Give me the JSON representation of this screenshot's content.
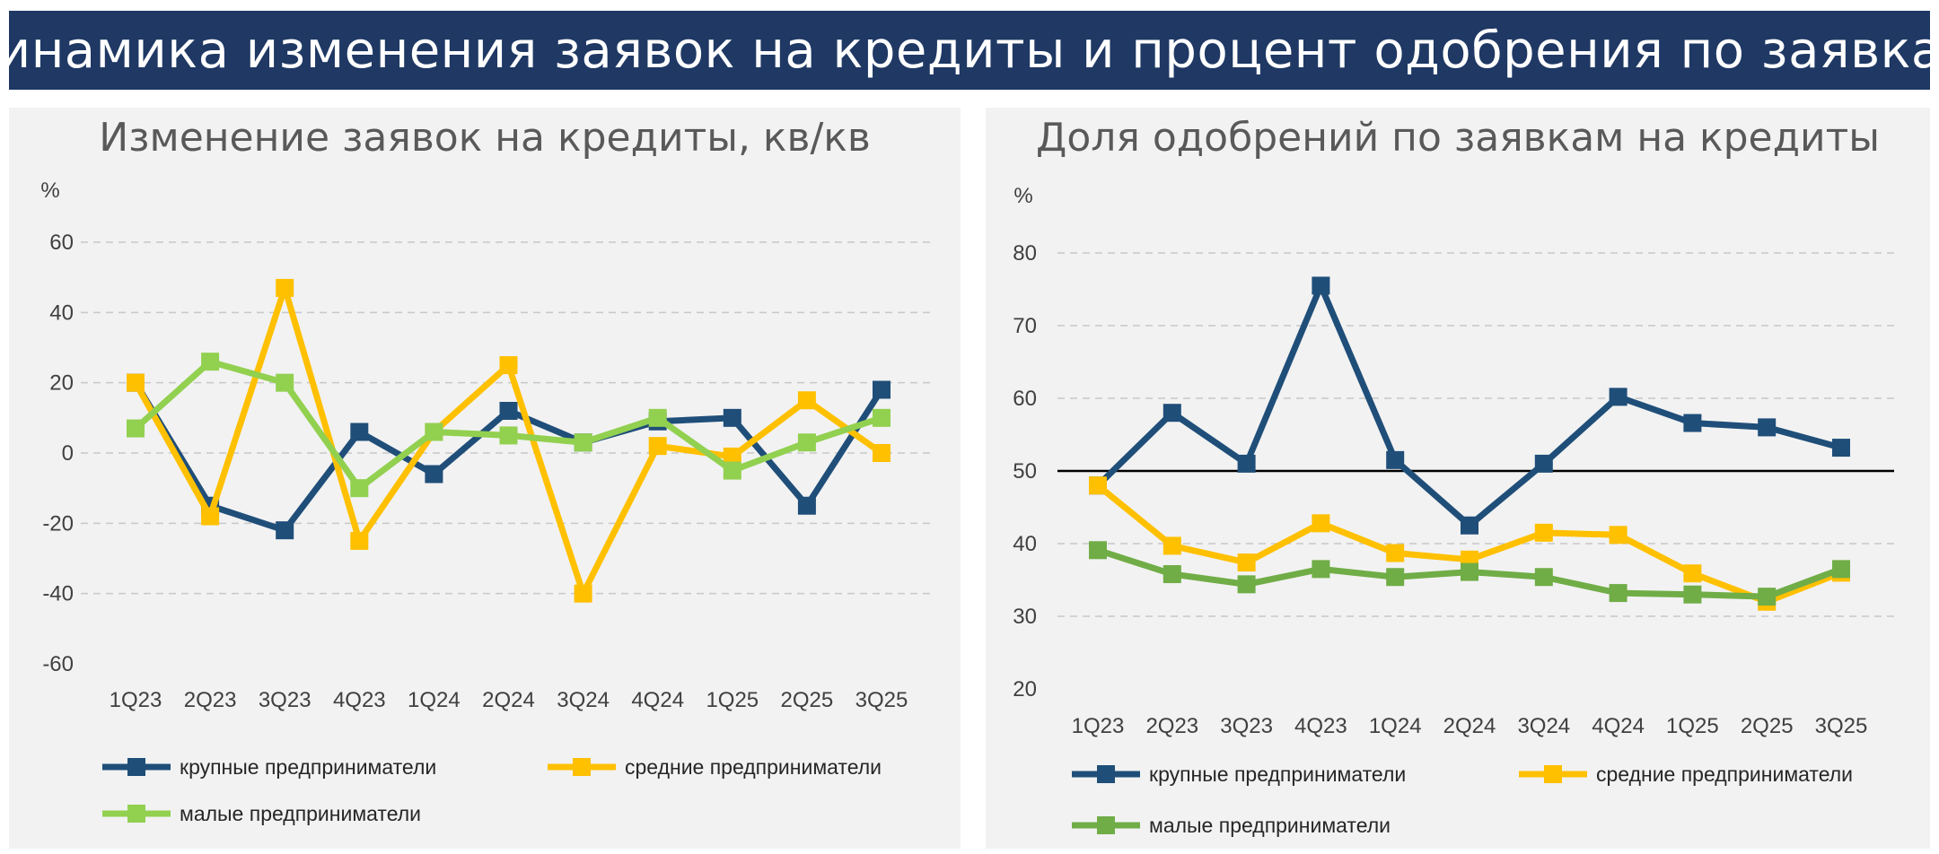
{
  "header": {
    "title": "Динамика изменения заявок на кредиты и процент одобрения по заявкам"
  },
  "colors": {
    "banner": "#1f3864",
    "panel_bg": "#f2f2f2",
    "large": "#1f4e79",
    "medium": "#ffc000",
    "small": "#92d050",
    "small_right": "#70ad47"
  },
  "chart_data": [
    {
      "type": "line",
      "title": "Изменение заявок на кредиты, кв/кв",
      "ylabel": "%",
      "categories": [
        "1Q23",
        "2Q23",
        "3Q23",
        "4Q23",
        "1Q24",
        "2Q24",
        "3Q24",
        "4Q24",
        "1Q25",
        "2Q25",
        "3Q25"
      ],
      "ylim": [
        -60,
        60
      ],
      "yticks": [
        -60,
        -40,
        -20,
        0,
        20,
        40,
        60
      ],
      "grid": true,
      "legend_position": "bottom",
      "series": [
        {
          "name": "крупные предприниматели",
          "color": "#1f4e79",
          "values": [
            20,
            -15,
            -22,
            6,
            -6,
            12,
            3,
            9,
            10,
            -15,
            18
          ]
        },
        {
          "name": "средние предприниматели",
          "color": "#ffc000",
          "values": [
            20,
            -18,
            47,
            -25,
            6,
            25,
            -40,
            2,
            -1,
            15,
            0
          ]
        },
        {
          "name": "малые предприниматели",
          "color": "#92d050",
          "values": [
            7,
            26,
            20,
            -10,
            6,
            5,
            3,
            10,
            -5,
            3,
            10
          ]
        }
      ]
    },
    {
      "type": "line",
      "title": "Доля одобрений по заявкам на кредиты",
      "ylabel": "%",
      "categories": [
        "1Q23",
        "2Q23",
        "3Q23",
        "4Q23",
        "1Q24",
        "2Q24",
        "3Q24",
        "4Q24",
        "1Q25",
        "2Q25",
        "3Q25"
      ],
      "ylim": [
        20,
        80
      ],
      "yticks": [
        20,
        30,
        40,
        50,
        60,
        70,
        80
      ],
      "grid": true,
      "reference_line": 50,
      "legend_position": "bottom",
      "series": [
        {
          "name": "крупные предприниматели",
          "color": "#1f4e79",
          "values": [
            48,
            58,
            51,
            75.5,
            51.5,
            42.5,
            51,
            60.2,
            56.6,
            56,
            53.2
          ]
        },
        {
          "name": "средние предприниматели",
          "color": "#ffc000",
          "values": [
            48,
            39.7,
            37.4,
            42.8,
            38.7,
            37.8,
            41.5,
            41.2,
            35.9,
            32,
            36
          ]
        },
        {
          "name": "малые предприниматели",
          "color": "#70ad47",
          "values": [
            39.1,
            35.8,
            34.4,
            36.5,
            35.4,
            36.1,
            35.4,
            33.2,
            33,
            32.7,
            36.5
          ]
        }
      ]
    }
  ]
}
